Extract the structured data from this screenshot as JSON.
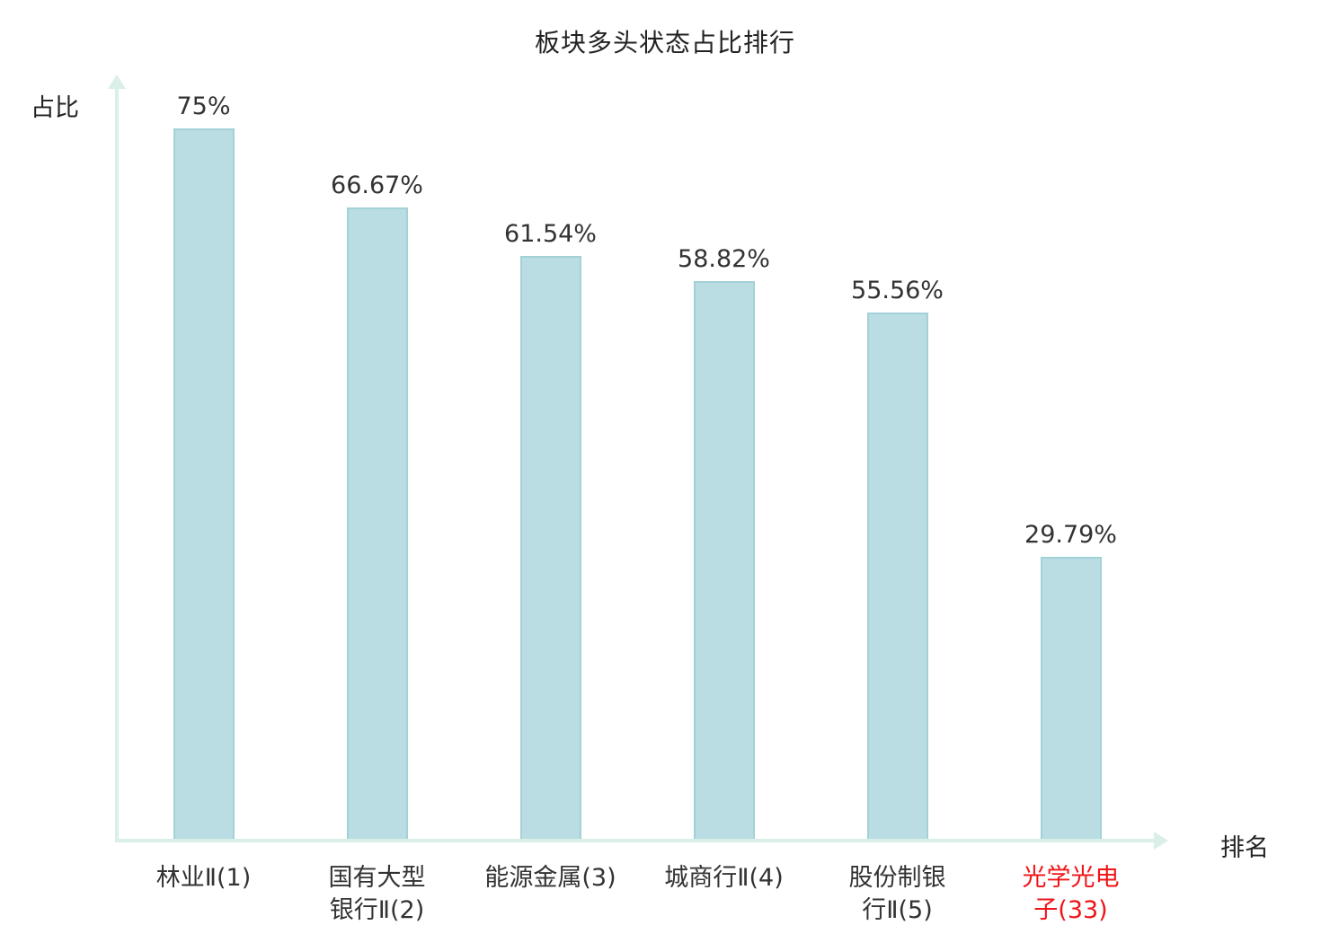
{
  "chart_data": {
    "type": "bar",
    "title": "板块多头状态占比排行",
    "xlabel": "排名",
    "ylabel": "占比",
    "categories": [
      "林业Ⅱ(1)",
      "国有大型银行Ⅱ(2)",
      "能源金属(3)",
      "城商行Ⅱ(4)",
      "股份制银行Ⅱ(5)",
      "光学光电子(33)"
    ],
    "tick_labels": [
      "林业Ⅱ(1)",
      "国有大型\n银行Ⅱ(2)",
      "能源金属(3)",
      "城商行Ⅱ(4)",
      "股份制银\n行Ⅱ(5)",
      "光学光电\n子(33)"
    ],
    "values": [
      75,
      66.67,
      61.54,
      58.82,
      55.56,
      29.79
    ],
    "value_labels": [
      "75%",
      "66.67%",
      "61.54%",
      "58.82%",
      "55.56%",
      "29.79%"
    ],
    "highlight_index": 5,
    "highlight_color": "#f01418",
    "ylim": [
      0,
      80
    ],
    "grid": false,
    "legend": false,
    "bar_color": "#b9dde2",
    "bar_border_color": "#a3d1d8",
    "axis_color": "#d9efe7",
    "label_color": "#333333"
  }
}
